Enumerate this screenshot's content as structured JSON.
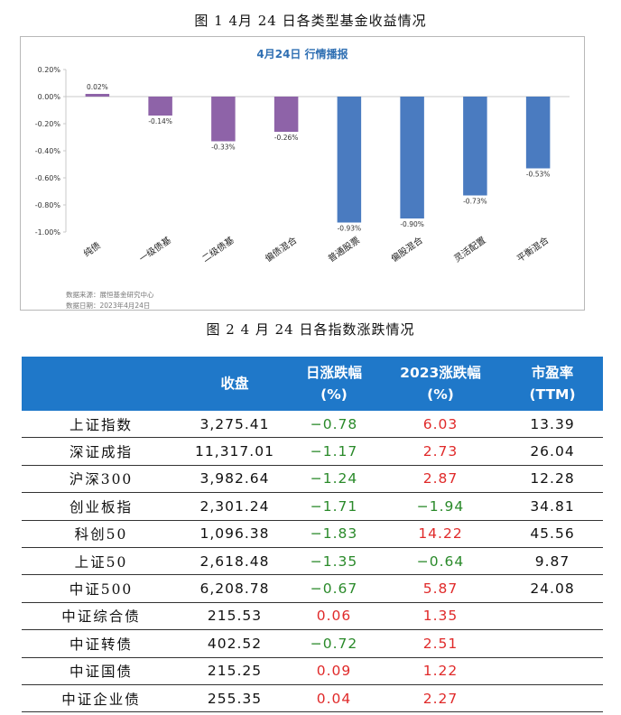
{
  "figure1": {
    "caption": "图 1  4月 24 日各类型基金收益情况",
    "title": "4月24日  行情播报",
    "source_line1": "数据来源：展恒基金研究中心",
    "source_line2": "数据日期：2023年4月24日"
  },
  "figure2": {
    "caption": "图 2  4 月 24 日各指数涨跌情况"
  },
  "chart_data": {
    "type": "bar",
    "title": "4月24日  行情播报",
    "categories": [
      "纯债",
      "一级债基",
      "二级债基",
      "偏债混合",
      "普通股票",
      "偏股混合",
      "灵活配置",
      "平衡混合"
    ],
    "values": [
      0.02,
      -0.14,
      -0.33,
      -0.26,
      -0.93,
      -0.9,
      -0.73,
      -0.53
    ],
    "data_labels": [
      "0.02%",
      "-0.14%",
      "-0.33%",
      "-0.26%",
      "-0.93%",
      "-0.90%",
      "-0.73%",
      "-0.53%"
    ],
    "bar_colors": [
      "#8e63a8",
      "#8e63a8",
      "#8e63a8",
      "#8e63a8",
      "#4a7bc0",
      "#4a7bc0",
      "#4a7bc0",
      "#4a7bc0"
    ],
    "yticks": [
      0.2,
      0.0,
      -0.2,
      -0.4,
      -0.6,
      -0.8,
      -1.0
    ],
    "ytick_labels": [
      "0.20%",
      "0.00%",
      "-0.20%",
      "-0.40%",
      "-0.60%",
      "-0.80%",
      "-1.00%"
    ],
    "ylim": [
      -1.0,
      0.2
    ],
    "xlabel": "",
    "ylabel": "",
    "grid": false
  },
  "table": {
    "headers": {
      "name": "",
      "close": "收盘",
      "day_line1": "日涨跌幅",
      "day_line2": "(%)",
      "ytd_line1": "2023涨跌幅",
      "ytd_line2": "(%)",
      "pe_line1": "市盈率",
      "pe_line2": "(TTM)"
    },
    "rows": [
      {
        "name": "上证指数",
        "close": "3,275.41",
        "day": "−0.78",
        "ytd": "6.03",
        "pe": "13.39"
      },
      {
        "name": "深证成指",
        "close": "11,317.01",
        "day": "−1.17",
        "ytd": "2.73",
        "pe": "26.04"
      },
      {
        "name": "沪深300",
        "close": "3,982.64",
        "day": "−1.24",
        "ytd": "2.87",
        "pe": "12.28"
      },
      {
        "name": "创业板指",
        "close": "2,301.24",
        "day": "−1.71",
        "ytd": "−1.94",
        "pe": "34.81"
      },
      {
        "name": "科创50",
        "close": "1,096.38",
        "day": "−1.83",
        "ytd": "14.22",
        "pe": "45.56"
      },
      {
        "name": "上证50",
        "close": "2,618.48",
        "day": "−1.35",
        "ytd": "−0.64",
        "pe": "9.87"
      },
      {
        "name": "中证500",
        "close": "6,208.78",
        "day": "−0.67",
        "ytd": "5.87",
        "pe": "24.08"
      },
      {
        "name": "中证综合债",
        "close": "215.53",
        "day": "0.06",
        "ytd": "1.35",
        "pe": ""
      },
      {
        "name": "中证转债",
        "close": "402.52",
        "day": "−0.72",
        "ytd": "2.51",
        "pe": ""
      },
      {
        "name": "中证国债",
        "close": "215.25",
        "day": "0.09",
        "ytd": "1.22",
        "pe": ""
      },
      {
        "name": "中证企业债",
        "close": "255.35",
        "day": "0.04",
        "ytd": "2.27",
        "pe": ""
      }
    ]
  }
}
